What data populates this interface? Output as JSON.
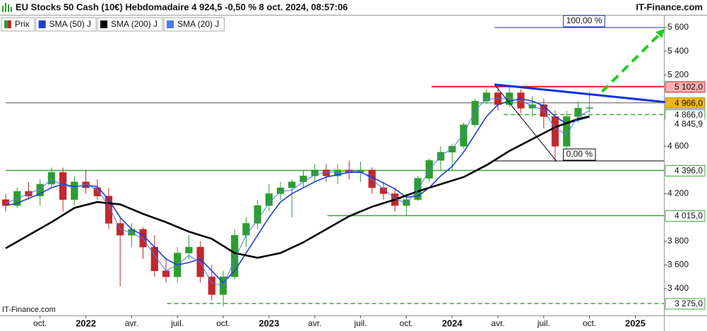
{
  "chart_data": {
    "type": "candlestick",
    "title": "EU Stocks 50 Cash (10€) Hebdomadaire 4 924,5 -0,50 % 8 oct. 2024, 08:57:06",
    "brand": "IT-Finance.com",
    "watermark": "IT-Finance.com",
    "price_name": "Prix",
    "up_color": "#2e9e2e",
    "down_color": "#c0282e",
    "categories": [
      null,
      null,
      null,
      "oct.",
      null,
      null,
      null,
      "2022",
      null,
      null,
      null,
      "avr.",
      null,
      null,
      null,
      "juil.",
      null,
      null,
      null,
      "oct.",
      null,
      null,
      null,
      "2023",
      null,
      null,
      null,
      "avr.",
      null,
      null,
      null,
      "juil.",
      null,
      null,
      null,
      "oct.",
      null,
      null,
      null,
      "2024",
      null,
      null,
      null,
      "avr.",
      null,
      null,
      null,
      "juil.",
      null,
      null,
      null,
      "oct.",
      null,
      null,
      null,
      "2025",
      null,
      null
    ],
    "open": [
      4150,
      4100,
      4220,
      4180,
      4280,
      4380,
      4150,
      4300,
      4250,
      4180,
      3950,
      3850,
      3900,
      3750,
      3550,
      3500,
      3700,
      3750,
      3500,
      3350,
      3500,
      3850,
      3950,
      4100,
      4200,
      4250,
      4300,
      4350,
      4400,
      4350,
      4400,
      4380,
      4400,
      4250,
      4200,
      4100,
      4150,
      4330,
      4480,
      4550,
      4600,
      4780,
      4980,
      5050,
      4950,
      5050,
      4920,
      4950,
      4850,
      4600,
      4850,
      4920,
      null,
      null,
      null,
      null,
      null,
      null
    ],
    "high": [
      4200,
      4250,
      4300,
      4320,
      4420,
      4420,
      4350,
      4400,
      4320,
      4250,
      4000,
      3950,
      3920,
      3850,
      3650,
      3750,
      3850,
      3800,
      3600,
      3550,
      3900,
      4000,
      4150,
      4280,
      4300,
      4320,
      4400,
      4450,
      4450,
      4450,
      4480,
      4470,
      4420,
      4300,
      4250,
      4200,
      4350,
      4500,
      4600,
      4620,
      4800,
      5000,
      5080,
      5120,
      5100,
      5080,
      5020,
      5000,
      4900,
      4900,
      4980,
      5060,
      null,
      null,
      null,
      null,
      null,
      null
    ],
    "low": [
      4050,
      4080,
      4150,
      4100,
      4250,
      4050,
      4100,
      4200,
      4150,
      3900,
      3420,
      3750,
      3650,
      3500,
      3450,
      3450,
      3650,
      3450,
      3300,
      3250,
      3480,
      3750,
      3900,
      4050,
      4150,
      4000,
      4250,
      4300,
      4300,
      4280,
      4320,
      4300,
      4200,
      4150,
      4050,
      4015,
      4140,
      4300,
      4400,
      4400,
      4580,
      4760,
      4950,
      4900,
      4930,
      4880,
      4850,
      4750,
      4475,
      4580,
      4800,
      4880,
      null,
      null,
      null,
      null,
      null,
      null
    ],
    "close": [
      4100,
      4220,
      4180,
      4280,
      4380,
      4150,
      4300,
      4250,
      4180,
      3950,
      3850,
      3900,
      3750,
      3550,
      3500,
      3700,
      3750,
      3500,
      3350,
      3500,
      3850,
      3950,
      4100,
      4200,
      4250,
      4300,
      4350,
      4400,
      4350,
      4400,
      4380,
      4400,
      4250,
      4200,
      4100,
      4150,
      4330,
      4480,
      4550,
      4600,
      4780,
      4980,
      5050,
      4950,
      5050,
      4920,
      4950,
      4850,
      4600,
      4850,
      4920,
      4924.5,
      null,
      null,
      null,
      null,
      null,
      null
    ],
    "series": [
      {
        "name": "SMA (50) J",
        "color": "#1f3fd0",
        "width": 1.6,
        "values": [
          4100,
          4120,
          4160,
          4200,
          4250,
          4280,
          4260,
          4270,
          4260,
          4150,
          4000,
          3900,
          3850,
          3750,
          3650,
          3600,
          3620,
          3650,
          3550,
          3450,
          3550,
          3700,
          3850,
          4000,
          4130,
          4200,
          4250,
          4300,
          4340,
          4360,
          4380,
          4380,
          4340,
          4290,
          4240,
          4170,
          4180,
          4250,
          4350,
          4430,
          4550,
          4700,
          4850,
          4950,
          4980,
          5000,
          4980,
          4940,
          4850,
          4790,
          4820,
          4845.9,
          null,
          null,
          null,
          null,
          null,
          null
        ]
      },
      {
        "name": "SMA (200) J",
        "color": "#000000",
        "width": 2.6,
        "values": [
          3740,
          3795,
          3850,
          3905,
          3960,
          4020,
          4080,
          4105,
          4130,
          4120,
          4110,
          4070,
          4030,
          3995,
          3960,
          3920,
          3880,
          3850,
          3820,
          3760,
          3700,
          3680,
          3660,
          3680,
          3700,
          3745,
          3790,
          3845,
          3900,
          3955,
          4010,
          4050,
          4090,
          4120,
          4150,
          4185,
          4220,
          4250,
          4280,
          4310,
          4340,
          4390,
          4440,
          4500,
          4560,
          4610,
          4660,
          4710,
          4760,
          4795,
          4830,
          4851,
          null,
          null,
          null,
          null,
          null,
          null
        ]
      },
      {
        "name": "SMA (20) J",
        "color": "#4a78f0",
        "width": 1,
        "values": [
          4120,
          4160,
          4200,
          4240,
          4320,
          4270,
          4250,
          4280,
          4230,
          4100,
          3900,
          3870,
          3820,
          3680,
          3550,
          3600,
          3680,
          3620,
          3450,
          3420,
          3650,
          3850,
          3980,
          4120,
          4220,
          4230,
          4300,
          4360,
          4380,
          4380,
          4390,
          4390,
          4320,
          4240,
          4160,
          4120,
          4230,
          4400,
          4520,
          4580,
          4700,
          4900,
          5000,
          5000,
          5000,
          4980,
          4940,
          4900,
          4750,
          4700,
          4850,
          4900,
          null,
          null,
          null,
          null,
          null,
          null
        ]
      }
    ],
    "ylim": [
      3174,
      5701
    ],
    "yticks": [
      {
        "value": 3400,
        "label": "3 400"
      },
      {
        "value": 3600,
        "label": "3 600"
      },
      {
        "value": 3800,
        "label": "3 800"
      },
      {
        "value": 4200,
        "label": "4 200"
      },
      {
        "value": 4600,
        "label": "4 600"
      },
      {
        "value": 5200,
        "label": "5 200"
      },
      {
        "value": 5400,
        "label": "5 400"
      },
      {
        "value": 5600,
        "label": "5 600"
      }
    ],
    "grid": false,
    "levels": [
      {
        "value": 5102,
        "label": "5 102,0",
        "color": "#e02020",
        "label_bg": "#f5b0b0",
        "x0": 37.2,
        "dashed": false,
        "line": true
      },
      {
        "value": 4966,
        "label": "4 966,0",
        "color": "#8a8a8a",
        "label_bg": "#f5b800",
        "x0": 0,
        "dashed": false,
        "line": true
      },
      {
        "value": 4866,
        "label": "4 866,0",
        "color": "#3aa83a",
        "label_bg": "#ffffff",
        "x0": 43.5,
        "dashed": true,
        "line": true
      },
      {
        "value": 4845.9,
        "label": "4 845,9",
        "color": "#1f3fd0",
        "label_bg": "#ffffff",
        "x0": 0,
        "dashed": false,
        "line": false
      },
      {
        "value": 4396,
        "label": "4 396,0",
        "color": "#3aa83a",
        "label_bg": "#ffffff",
        "x0": 0,
        "dashed": false,
        "line": true
      },
      {
        "value": 4015,
        "label": "4 015,0",
        "color": "#3aa83a",
        "label_bg": "#ffffff",
        "x0": 28.1,
        "dashed": false,
        "line": true
      },
      {
        "value": 3275,
        "label": "3 275,0",
        "color": "#3aa83a",
        "label_bg": "#ffffff",
        "x0": 14.1,
        "dashed": true,
        "line": true
      }
    ],
    "fib": {
      "x0": 42.7,
      "levels": [
        {
          "value": 4476,
          "label": "0,00 %",
          "color": "#000000"
        },
        {
          "value": 5600,
          "label": "100,00 %",
          "color": "#2030c0"
        }
      ],
      "diagonal": {
        "x": [
          42.7,
          48.1
        ],
        "y": [
          5120,
          4476
        ]
      }
    },
    "trendline": {
      "color": "#1030e0",
      "x": [
        42.7,
        57.8
      ],
      "y": [
        5120,
        4970
      ]
    },
    "arrow": {
      "color": "#22cc22",
      "x": [
        52.1,
        57.6
      ],
      "y": [
        5060,
        5590
      ]
    }
  }
}
